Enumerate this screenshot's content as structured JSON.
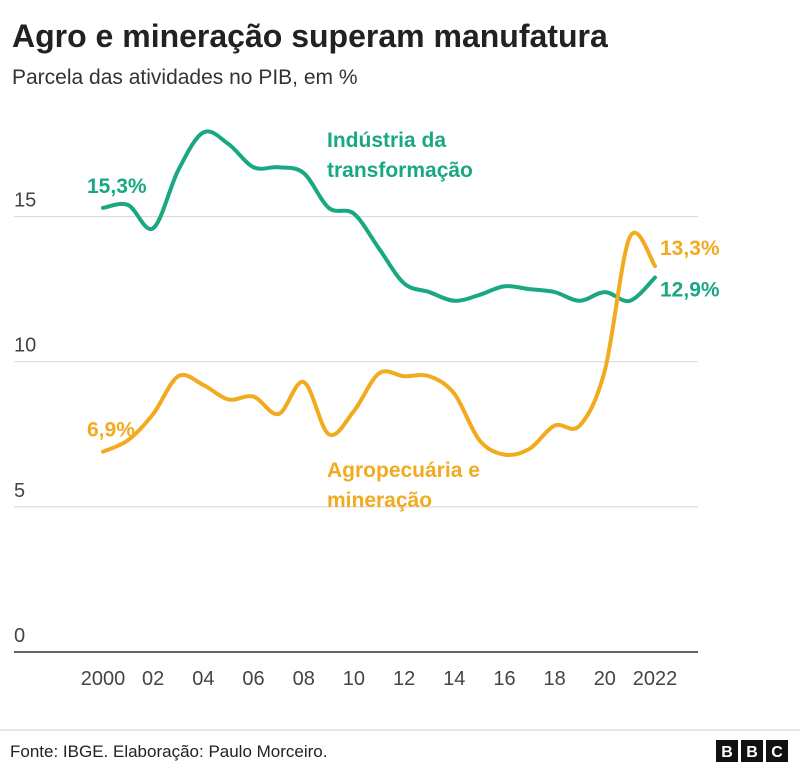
{
  "chart_data": {
    "type": "line",
    "title": "Agro e mineração superam manufatura",
    "subtitle": "Parcela das atividades no PIB, em %",
    "x": [
      2000,
      2001,
      2002,
      2003,
      2004,
      2005,
      2006,
      2007,
      2008,
      2009,
      2010,
      2011,
      2012,
      2013,
      2014,
      2015,
      2016,
      2017,
      2018,
      2019,
      2020,
      2021,
      2022
    ],
    "xlim": [
      2000,
      2022
    ],
    "xticks": [
      2000,
      {
        "value": 2002,
        "label": "02"
      },
      {
        "value": 2004,
        "label": "04"
      },
      {
        "value": 2006,
        "label": "06"
      },
      {
        "value": 2008,
        "label": "08"
      },
      {
        "value": 2010,
        "label": "10"
      },
      {
        "value": 2012,
        "label": "12"
      },
      {
        "value": 2014,
        "label": "14"
      },
      {
        "value": 2016,
        "label": "16"
      },
      {
        "value": 2018,
        "label": "18"
      },
      {
        "value": 2020,
        "label": "20"
      },
      2022
    ],
    "ylim": [
      0,
      18.5
    ],
    "yticks": [
      0,
      5,
      10,
      15
    ],
    "grid": true,
    "series": [
      {
        "name": "Indústria da transformação",
        "color": "#1aa883",
        "values": [
          15.3,
          15.4,
          14.6,
          16.6,
          17.9,
          17.5,
          16.7,
          16.7,
          16.5,
          15.3,
          15.1,
          13.9,
          12.7,
          12.4,
          12.1,
          12.3,
          12.6,
          12.5,
          12.4,
          12.1,
          12.4,
          12.1,
          12.9
        ],
        "value_labels": [
          "15,3%",
          null,
          null,
          null,
          null,
          null,
          null,
          null,
          null,
          null,
          null,
          null,
          null,
          null,
          null,
          null,
          null,
          null,
          null,
          null,
          null,
          null,
          "12,9%"
        ]
      },
      {
        "name": "Agropecuária e mineração",
        "color": "#f2aa1f",
        "values": [
          6.9,
          7.3,
          8.2,
          9.5,
          9.2,
          8.7,
          8.8,
          8.2,
          9.3,
          7.5,
          8.3,
          9.6,
          9.5,
          9.5,
          8.9,
          7.3,
          6.8,
          7.0,
          7.8,
          7.8,
          9.7,
          14.3,
          13.3
        ],
        "value_labels": [
          "6,9%",
          null,
          null,
          null,
          null,
          null,
          null,
          null,
          null,
          null,
          null,
          null,
          null,
          null,
          null,
          null,
          null,
          null,
          null,
          null,
          null,
          null,
          "13,3%"
        ]
      }
    ],
    "source": "Fonte: IBGE. Elaboração: Paulo Morceiro.",
    "logo": [
      "B",
      "B",
      "C"
    ]
  }
}
